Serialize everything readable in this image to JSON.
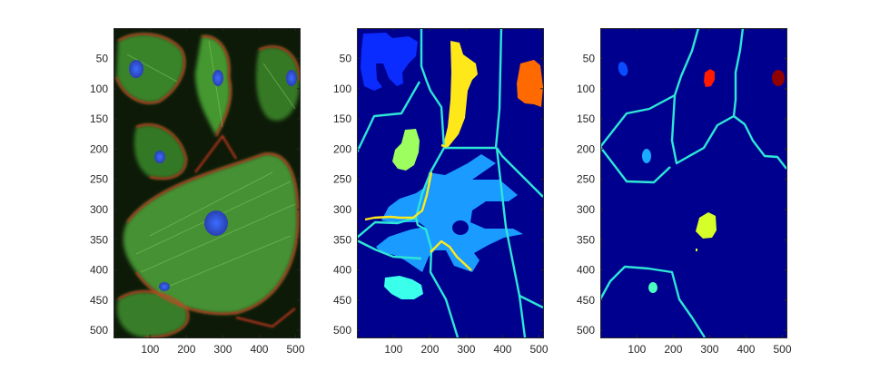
{
  "chart_data": [
    {
      "type": "image",
      "panel": "left",
      "description_colors": {
        "background": "#0d1a08",
        "actin": "#d23a22",
        "tubulin": "#4fb33a",
        "nuclei": "#2a55d6"
      },
      "xlim": [
        0.5,
        512.5
      ],
      "ylim": [
        0.5,
        512.5
      ],
      "x_ticks": [
        100,
        200,
        300,
        400,
        500
      ],
      "x_tick_labels": [
        "100",
        "200",
        "300",
        "400",
        "500"
      ],
      "y_ticks": [
        50,
        100,
        150,
        200,
        250,
        300,
        350,
        400,
        450,
        500
      ],
      "y_tick_labels": [
        "50",
        "100",
        "150",
        "200",
        "250",
        "300",
        "350",
        "400",
        "450",
        "500"
      ],
      "y_direction": "reverse"
    },
    {
      "type": "image",
      "panel": "middle",
      "colormap": "jet",
      "background": "#00008f",
      "xlim": [
        0.5,
        512.5
      ],
      "ylim": [
        0.5,
        512.5
      ],
      "x_ticks": [
        100,
        200,
        300,
        400,
        500
      ],
      "x_tick_labels": [
        "100",
        "200",
        "300",
        "400",
        "500"
      ],
      "y_ticks": [
        50,
        100,
        150,
        200,
        250,
        300,
        350,
        400,
        450,
        500
      ],
      "y_tick_labels": [
        "50",
        "100",
        "150",
        "200",
        "250",
        "300",
        "350",
        "400",
        "450",
        "500"
      ],
      "y_direction": "reverse",
      "boundary_color": "#2ee6d6",
      "highlight_boundary_color": "#ffe81a",
      "regions": [
        {
          "label": "blue",
          "color": "#0a2cff",
          "cx": 60,
          "cy": 65
        },
        {
          "label": "yellow",
          "color": "#ffe81a",
          "cx": 265,
          "cy": 90
        },
        {
          "label": "orange",
          "color": "#ff6a00",
          "cx": 465,
          "cy": 90
        },
        {
          "label": "light-green",
          "color": "#9dff5f",
          "cx": 120,
          "cy": 195
        },
        {
          "label": "light-blue",
          "color": "#1a9bff",
          "cx": 300,
          "cy": 290
        },
        {
          "label": "cyan",
          "color": "#3affea",
          "cx": 100,
          "cy": 440
        }
      ]
    },
    {
      "type": "image",
      "panel": "right",
      "colormap": "jet",
      "background": "#00008f",
      "xlim": [
        0.5,
        512.5
      ],
      "ylim": [
        0.5,
        512.5
      ],
      "x_ticks": [
        100,
        200,
        300,
        400,
        500
      ],
      "x_tick_labels": [
        "100",
        "200",
        "300",
        "400",
        "500"
      ],
      "y_ticks": [
        50,
        100,
        150,
        200,
        250,
        300,
        350,
        400,
        450,
        500
      ],
      "y_tick_labels": [
        "50",
        "100",
        "150",
        "200",
        "250",
        "300",
        "350",
        "400",
        "450",
        "500"
      ],
      "y_direction": "reverse",
      "boundary_color": "#2ee6d6",
      "regions": [
        {
          "label": "blue-dot",
          "color": "#0a4cff",
          "cx": 60,
          "cy": 68
        },
        {
          "label": "red-dot",
          "color": "#ff1a00",
          "cx": 290,
          "cy": 80
        },
        {
          "label": "dark-red-dot",
          "color": "#8f0000",
          "cx": 490,
          "cy": 80
        },
        {
          "label": "sky-dot",
          "color": "#1aaaff",
          "cx": 125,
          "cy": 210
        },
        {
          "label": "yellow-green-blob",
          "color": "#d6ff2a",
          "cx": 290,
          "cy": 320
        },
        {
          "label": "aqua-dot",
          "color": "#4affc0",
          "cx": 140,
          "cy": 425
        }
      ]
    }
  ]
}
